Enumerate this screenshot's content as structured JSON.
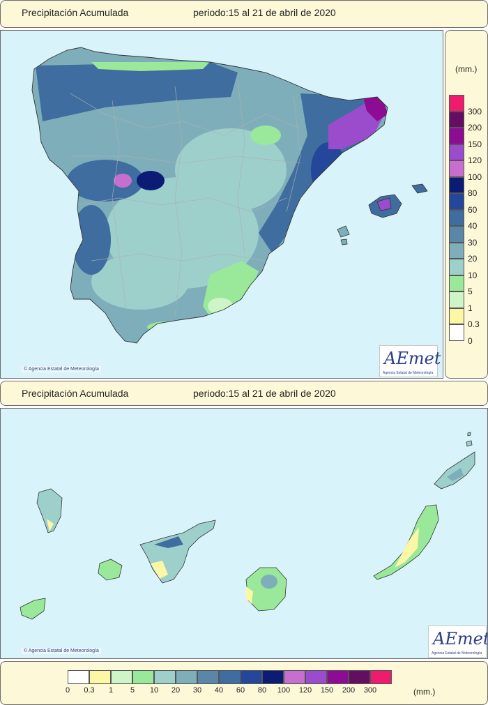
{
  "top_panel": {
    "title": "Precipitación Acumulada",
    "period": "periodo:15 al 21 de abril de 2020"
  },
  "bottom_panel": {
    "title": "Precipitación Acumulada",
    "period": "periodo:15 al 21 de abril de 2020"
  },
  "credit": "Agencia Estatal de Meteorología",
  "logo": {
    "name": "AEmet",
    "subtitle": "Agencia Estatal de Meteorología"
  },
  "legend": {
    "unit": "(mm.)",
    "classes": [
      {
        "label": "0",
        "color": "#ffffff"
      },
      {
        "label": "0.3",
        "color": "#fbf7a4"
      },
      {
        "label": "1",
        "color": "#cdf5c8"
      },
      {
        "label": "5",
        "color": "#9ae89a"
      },
      {
        "label": "10",
        "color": "#9dcfcb"
      },
      {
        "label": "20",
        "color": "#7eaeba"
      },
      {
        "label": "30",
        "color": "#5a87a7"
      },
      {
        "label": "40",
        "color": "#3f6d9f"
      },
      {
        "label": "60",
        "color": "#24479b"
      },
      {
        "label": "80",
        "color": "#0c1c74"
      },
      {
        "label": "100",
        "color": "#c66fcf"
      },
      {
        "label": "120",
        "color": "#9a4ccc"
      },
      {
        "label": "150",
        "color": "#8c0c93"
      },
      {
        "label": "200",
        "color": "#640e61"
      },
      {
        "label": "300",
        "color": "#ee1b6e"
      }
    ]
  },
  "colors": {
    "sea": "#d9f3fb",
    "panel_bg": "#fdf9d8",
    "border": "#6b6b6b"
  }
}
